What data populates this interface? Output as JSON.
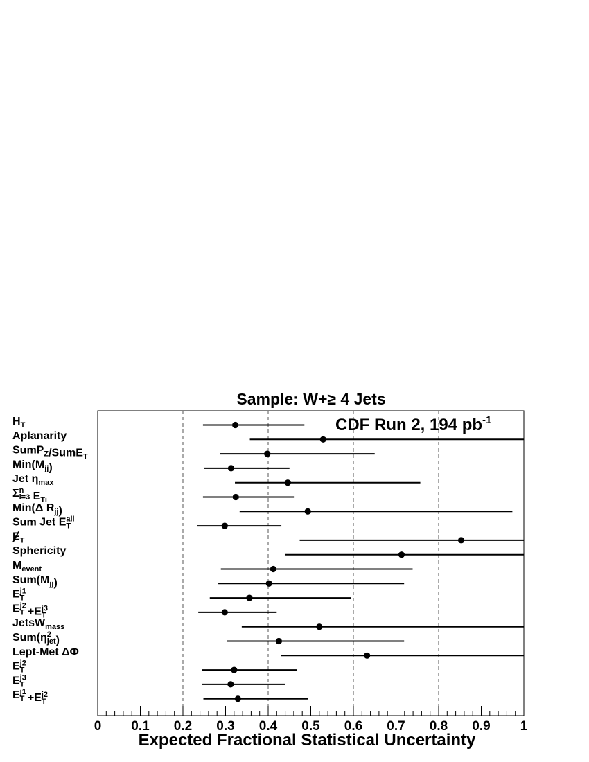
{
  "chart_data": {
    "type": "scatter",
    "title": "Sample: W+≥ 4 Jets",
    "annotation": "CDF Run 2, 194 pb",
    "annotation_sup": "-1",
    "xlabel": "Expected Fractional Statistical Uncertainty",
    "xlim": [
      0,
      1
    ],
    "x_ticks": [
      "0",
      "0.1",
      "0.2",
      "0.3",
      "0.4",
      "0.5",
      "0.6",
      "0.7",
      "0.8",
      "0.9",
      "1"
    ],
    "dashed_gridlines_x": [
      0.2,
      0.4,
      0.6,
      0.8
    ],
    "grid": false,
    "categories": [
      {
        "label": "H",
        "sub": "T",
        "value": 0.323,
        "low": 0.247,
        "high": 0.485
      },
      {
        "label": "Aplanarity",
        "value": 0.529,
        "low": 0.357,
        "high": 1.0
      },
      {
        "label": "SumP",
        "sub": "Z",
        "tail": "/SumE",
        "sub2": "T",
        "value": 0.398,
        "low": 0.287,
        "high": 0.65
      },
      {
        "label": "Min(M",
        "sub": "jj",
        "tail": ")",
        "value": 0.313,
        "low": 0.249,
        "high": 0.45
      },
      {
        "label": "Jet η",
        "sub": "max",
        "value": 0.446,
        "low": 0.322,
        "high": 0.757
      },
      {
        "label": "Σ",
        "sup": "n",
        "sub": "i=3",
        "tail": " E",
        "sub2": "Ti",
        "value": 0.324,
        "low": 0.247,
        "high": 0.462
      },
      {
        "label": "Min(Δ R",
        "sub": "jj",
        "tail": ")",
        "value": 0.493,
        "low": 0.333,
        "high": 0.973
      },
      {
        "label": "Sum Jet E",
        "sup": "all",
        "sub": "T",
        "value": 0.298,
        "low": 0.233,
        "high": 0.431
      },
      {
        "label": "E",
        "sub": "T",
        "slashed": true,
        "value": 0.853,
        "low": 0.474,
        "high": 1.0
      },
      {
        "label": "Sphericity",
        "value": 0.713,
        "low": 0.439,
        "high": 1.0
      },
      {
        "label": "M",
        "sub": "event",
        "value": 0.412,
        "low": 0.289,
        "high": 0.739
      },
      {
        "label": "Sum(M",
        "sub": "jj",
        "tail": ")",
        "value": 0.402,
        "low": 0.283,
        "high": 0.719
      },
      {
        "label": "E",
        "sup": "j1",
        "sub": "T",
        "value": 0.356,
        "low": 0.263,
        "high": 0.595
      },
      {
        "label": "E",
        "sup": "j2",
        "sub": "T",
        "tail": " +E",
        "sup2": "j3",
        "sub2": "T",
        "value": 0.298,
        "low": 0.236,
        "high": 0.42
      },
      {
        "label": "JetsW",
        "sub": "mass",
        "value": 0.52,
        "low": 0.338,
        "high": 1.0
      },
      {
        "label": "Sum(η",
        "sup": "2",
        "sub": "jet",
        "tail": ")",
        "value": 0.425,
        "low": 0.303,
        "high": 0.719
      },
      {
        "label": "Lept-Met  ΔΦ",
        "value": 0.632,
        "low": 0.43,
        "high": 1.0
      },
      {
        "label": "E",
        "sup": "j2",
        "sub": "T",
        "value": 0.32,
        "low": 0.244,
        "high": 0.467
      },
      {
        "label": "E",
        "sup": "j3",
        "sub": "T",
        "value": 0.312,
        "low": 0.244,
        "high": 0.44
      },
      {
        "label": "E",
        "sup": "j1",
        "sub": "T",
        "tail": " +E",
        "sup2": "j2",
        "sub2": "T",
        "value": 0.329,
        "low": 0.248,
        "high": 0.494
      }
    ]
  }
}
